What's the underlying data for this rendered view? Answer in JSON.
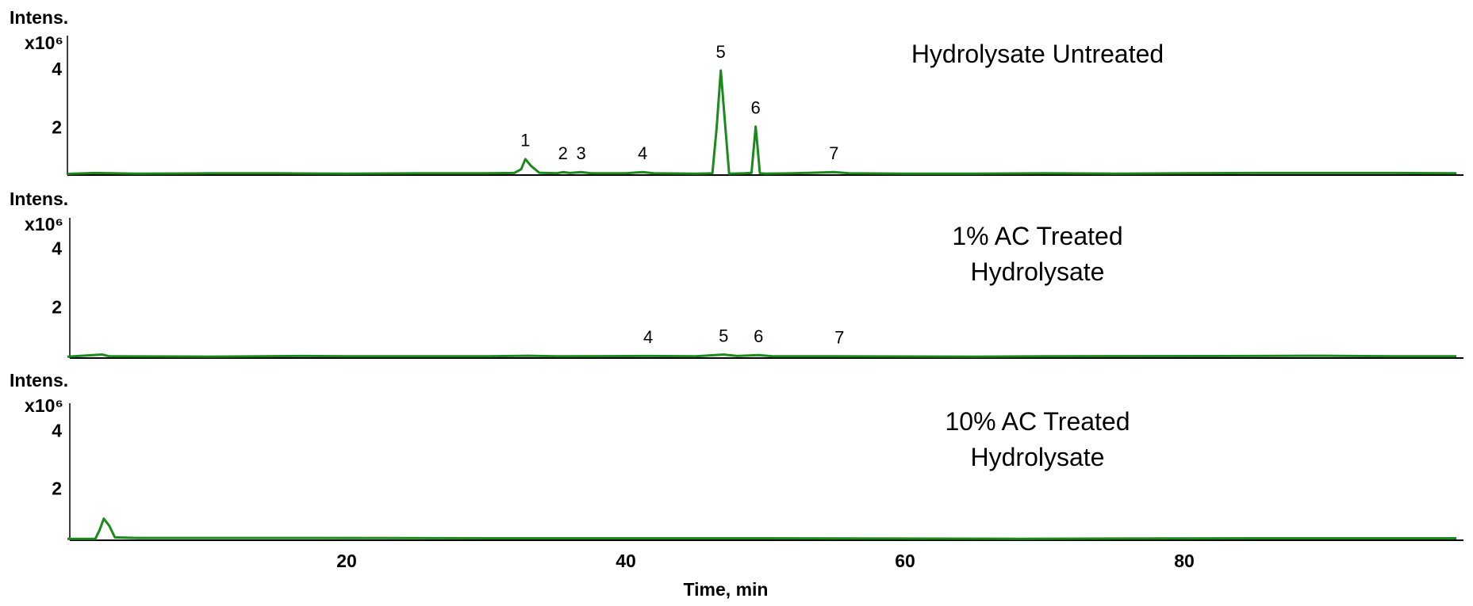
{
  "chart_data": [
    {
      "type": "line",
      "title": [
        "Hydrolysate Untreated"
      ],
      "ylabel": "Intens.",
      "yunit": "x10⁶",
      "color": "#1a8a1a",
      "xlim": [
        0,
        100
      ],
      "ylim": [
        0.4,
        5.2
      ],
      "yticks": [
        2,
        4
      ],
      "x": [
        0,
        2,
        5,
        10,
        15,
        20,
        25,
        30,
        32,
        32.5,
        32.8,
        33.2,
        33.8,
        35,
        35.5,
        36,
        36.8,
        37.5,
        40,
        41.2,
        42,
        45,
        46.2,
        46.5,
        46.8,
        47.1,
        47.4,
        48.5,
        49,
        49.3,
        49.6,
        50,
        52,
        54.9,
        56,
        60,
        65,
        70,
        75,
        80,
        85,
        90,
        95,
        99.5
      ],
      "values": [
        0.44,
        0.47,
        0.45,
        0.46,
        0.46,
        0.45,
        0.46,
        0.46,
        0.47,
        0.6,
        0.95,
        0.72,
        0.48,
        0.46,
        0.5,
        0.47,
        0.5,
        0.46,
        0.46,
        0.5,
        0.46,
        0.45,
        0.46,
        2.0,
        4.0,
        2.2,
        0.45,
        0.46,
        0.47,
        2.07,
        0.46,
        0.45,
        0.46,
        0.5,
        0.46,
        0.45,
        0.45,
        0.46,
        0.45,
        0.46,
        0.47,
        0.47,
        0.47,
        0.46
      ],
      "peaks": [
        {
          "label": "1",
          "x": 32.8
        },
        {
          "label": "2",
          "x": 35.5
        },
        {
          "label": "3",
          "x": 36.8
        },
        {
          "label": "4",
          "x": 41.2
        },
        {
          "label": "5",
          "x": 46.8
        },
        {
          "label": "6",
          "x": 49.3
        },
        {
          "label": "7",
          "x": 54.9
        }
      ]
    },
    {
      "type": "line",
      "title": [
        "1% AC Treated",
        "Hydrolysate"
      ],
      "ylabel": "Intens.",
      "yunit": "x10⁶",
      "color": "#1a8a1a",
      "xlim": [
        0,
        100
      ],
      "ylim": [
        0.3,
        5.1
      ],
      "yticks": [
        2,
        4
      ],
      "x": [
        0,
        2.5,
        3,
        10,
        17,
        20,
        30,
        33,
        35,
        41.6,
        45,
        47,
        48,
        49.5,
        50.5,
        55,
        65,
        70,
        85,
        90,
        95,
        99.5
      ],
      "values": [
        0.35,
        0.42,
        0.36,
        0.35,
        0.37,
        0.36,
        0.36,
        0.38,
        0.36,
        0.37,
        0.36,
        0.42,
        0.37,
        0.4,
        0.36,
        0.36,
        0.35,
        0.36,
        0.37,
        0.38,
        0.36,
        0.36
      ],
      "peaks": [
        {
          "label": "4",
          "x": 41.6
        },
        {
          "label": "5",
          "x": 47
        },
        {
          "label": "6",
          "x": 49.5
        },
        {
          "label": "7",
          "x": 55.3
        }
      ]
    },
    {
      "type": "line",
      "title": [
        "10% AC Treated",
        "Hydrolysate"
      ],
      "ylabel": "Intens.",
      "yunit": "x10⁶",
      "color": "#1a8a1a",
      "xlim": [
        0,
        100
      ],
      "ylim": [
        0.25,
        5.0
      ],
      "yticks": [
        2,
        4
      ],
      "x": [
        0,
        2,
        2.3,
        2.6,
        3,
        3.4,
        5,
        18,
        30,
        50,
        68,
        85,
        99.5
      ],
      "values": [
        0.3,
        0.3,
        0.6,
        1.0,
        0.75,
        0.35,
        0.33,
        0.33,
        0.32,
        0.32,
        0.3,
        0.32,
        0.32
      ],
      "xticks": [
        20,
        40,
        60,
        80
      ],
      "xlabel": "Time, min"
    }
  ]
}
